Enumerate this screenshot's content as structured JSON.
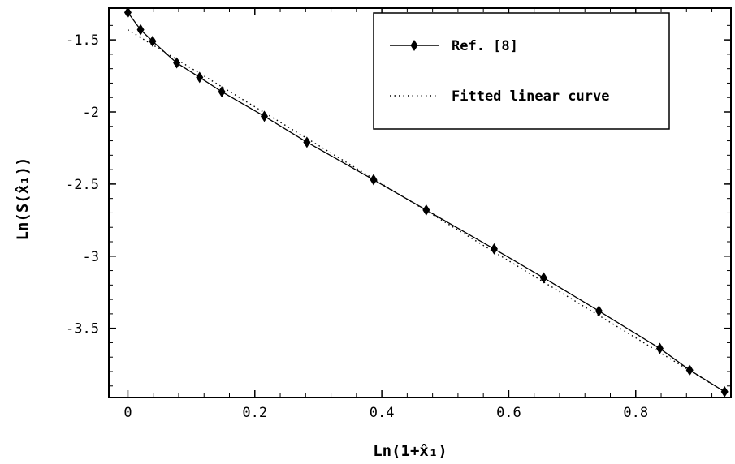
{
  "chart_data": {
    "type": "line",
    "title": "",
    "xlabel": "Ln(1+x̂₁)",
    "ylabel": "Ln(S(x̂₁))",
    "xlim": [
      -0.03,
      0.95
    ],
    "ylim": [
      -3.98,
      -1.28
    ],
    "x_ticks": [
      {
        "value": 0,
        "label": "0"
      },
      {
        "value": 0.2,
        "label": "0.2"
      },
      {
        "value": 0.4,
        "label": "0.4"
      },
      {
        "value": 0.6,
        "label": "0.6"
      },
      {
        "value": 0.8,
        "label": "0.8"
      }
    ],
    "y_ticks": [
      {
        "value": -1.5,
        "label": "-1.5"
      },
      {
        "value": -2,
        "label": "-2"
      },
      {
        "value": -2.5,
        "label": "-2.5"
      },
      {
        "value": -3,
        "label": "-3"
      },
      {
        "value": -3.5,
        "label": "-3.5"
      }
    ],
    "grid": false,
    "legend_position": "top-right",
    "series": [
      {
        "name": "Ref. [8]",
        "style": "solid-diamond-markers",
        "color": "#000000",
        "x": [
          0,
          0.02,
          0.039,
          0.077,
          0.113,
          0.148,
          0.215,
          0.282,
          0.387,
          0.47,
          0.577,
          0.655,
          0.742,
          0.838,
          0.885,
          0.94
        ],
        "y": [
          -1.31,
          -1.43,
          -1.51,
          -1.66,
          -1.76,
          -1.86,
          -2.03,
          -2.21,
          -2.47,
          -2.68,
          -2.95,
          -3.15,
          -3.38,
          -3.64,
          -3.79,
          -3.94
        ]
      },
      {
        "name": "Fitted linear curve",
        "style": "dotted",
        "color": "#000000",
        "x": [
          0,
          0.94
        ],
        "y": [
          -1.43,
          -3.94
        ]
      }
    ]
  }
}
